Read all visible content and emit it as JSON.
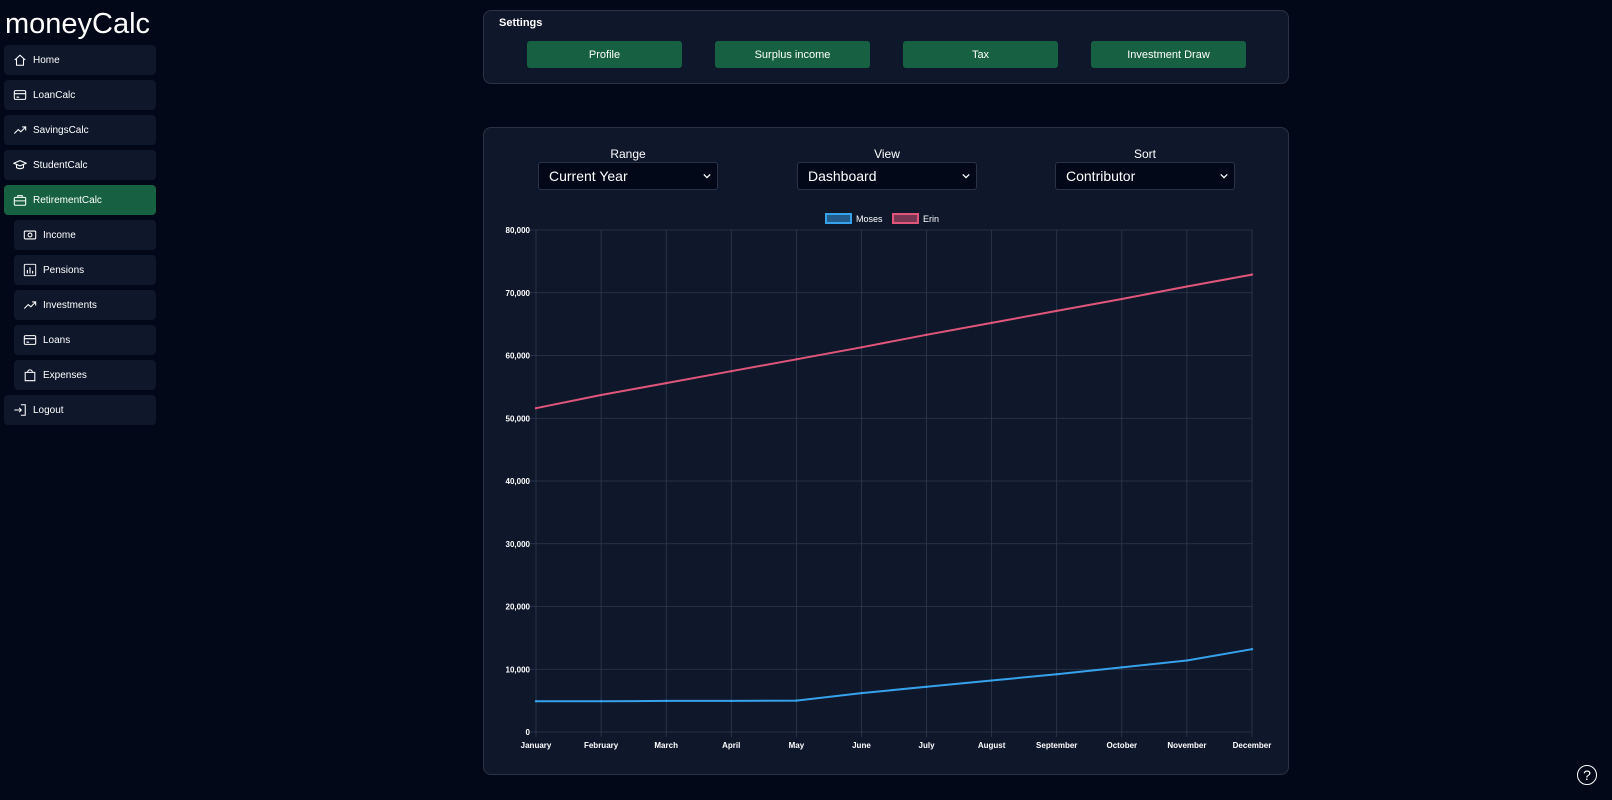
{
  "app": {
    "title": "moneyCalc"
  },
  "sidebar": {
    "items": [
      {
        "label": "Home",
        "icon": "home-icon",
        "sub": false,
        "active": false
      },
      {
        "label": "LoanCalc",
        "icon": "card-icon",
        "sub": false,
        "active": false
      },
      {
        "label": "SavingsCalc",
        "icon": "trending-up-icon",
        "sub": false,
        "active": false
      },
      {
        "label": "StudentCalc",
        "icon": "graduation-cap-icon",
        "sub": false,
        "active": false
      },
      {
        "label": "RetirementCalc",
        "icon": "briefcase-icon",
        "sub": false,
        "active": true
      },
      {
        "label": "Income",
        "icon": "cash-icon",
        "sub": true,
        "active": false
      },
      {
        "label": "Pensions",
        "icon": "bar-chart-icon",
        "sub": true,
        "active": false
      },
      {
        "label": "Investments",
        "icon": "trending-up-icon",
        "sub": true,
        "active": false
      },
      {
        "label": "Loans",
        "icon": "card-icon",
        "sub": true,
        "active": false
      },
      {
        "label": "Expenses",
        "icon": "shopping-bag-icon",
        "sub": true,
        "active": false
      },
      {
        "label": "Logout",
        "icon": "logout-icon",
        "sub": false,
        "active": false
      }
    ]
  },
  "settings": {
    "title": "Settings",
    "buttons": [
      "Profile",
      "Surplus income",
      "Tax",
      "Investment Draw"
    ]
  },
  "controls": {
    "range": {
      "label": "Range",
      "value": "Current Year"
    },
    "view": {
      "label": "View",
      "value": "Dashboard"
    },
    "sort": {
      "label": "Sort",
      "value": "Contributor"
    }
  },
  "colors": {
    "background": "#020817",
    "panel": "#0f172a",
    "accent": "#176142",
    "grid": "#2e3a50",
    "moses": "#36a2eb",
    "erin": "#e0567a"
  },
  "chart_data": {
    "type": "line",
    "categories": [
      "January",
      "February",
      "March",
      "April",
      "May",
      "June",
      "July",
      "August",
      "September",
      "October",
      "November",
      "December"
    ],
    "ylim": [
      0,
      80000
    ],
    "yticks": [
      0,
      10000,
      20000,
      30000,
      40000,
      50000,
      60000,
      70000,
      80000
    ],
    "ytick_labels": [
      "0",
      "10,000",
      "20,000",
      "30,000",
      "40,000",
      "50,000",
      "60,000",
      "70,000",
      "80,000"
    ],
    "grid": true,
    "legend": "top-center",
    "series": [
      {
        "name": "Moses",
        "color": "#36a2eb",
        "values": [
          4900,
          4900,
          4950,
          4950,
          5000,
          6200,
          7200,
          8200,
          9200,
          10300,
          11400,
          13200
        ]
      },
      {
        "name": "Erin",
        "color": "#e0567a",
        "values": [
          51600,
          53700,
          55600,
          57500,
          59400,
          61300,
          63300,
          65200,
          67100,
          69000,
          71000,
          72900
        ]
      }
    ]
  }
}
